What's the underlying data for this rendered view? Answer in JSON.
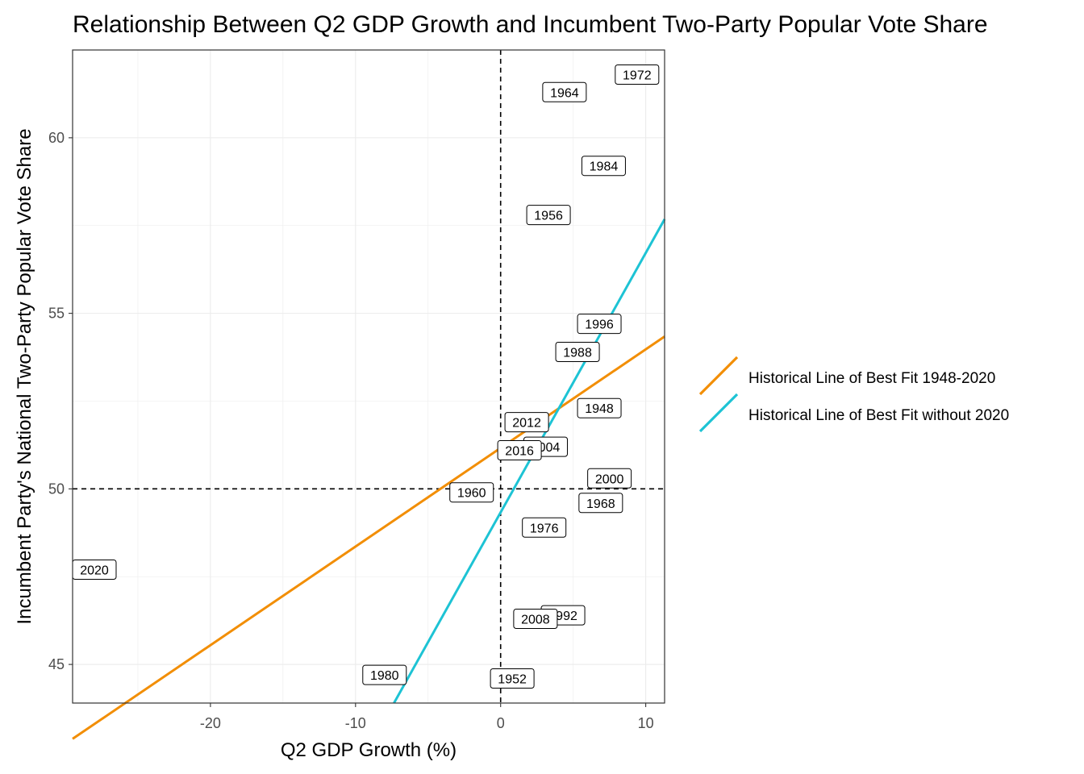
{
  "chart_data": {
    "type": "scatter",
    "title": "Relationship Between Q2 GDP Growth and Incumbent Two-Party Popular Vote Share",
    "xlabel": "Q2 GDP Growth (%)",
    "ylabel": "Incumbent Party's National Two-Party Popular Vote Share",
    "xlim": [
      -29.5,
      11.3
    ],
    "ylim": [
      43.9,
      62.5
    ],
    "x_ticks": [
      -20,
      -10,
      0,
      10
    ],
    "y_ticks": [
      45,
      50,
      55,
      60
    ],
    "grid": true,
    "reference_lines": {
      "x": 0,
      "y": 50,
      "style": "dashed"
    },
    "points": [
      {
        "label": "1948",
        "x": 6.8,
        "y": 52.3
      },
      {
        "label": "1952",
        "x": 0.8,
        "y": 44.6
      },
      {
        "label": "1956",
        "x": 3.3,
        "y": 57.8
      },
      {
        "label": "1960",
        "x": -2.0,
        "y": 49.9
      },
      {
        "label": "1964",
        "x": 4.4,
        "y": 61.3
      },
      {
        "label": "1968",
        "x": 6.9,
        "y": 49.6
      },
      {
        "label": "1972",
        "x": 9.4,
        "y": 61.8
      },
      {
        "label": "1976",
        "x": 3.0,
        "y": 48.9
      },
      {
        "label": "1980",
        "x": -8.0,
        "y": 44.7
      },
      {
        "label": "1984",
        "x": 7.1,
        "y": 59.2
      },
      {
        "label": "1988",
        "x": 5.3,
        "y": 53.9
      },
      {
        "label": "1992",
        "x": 4.3,
        "y": 46.4
      },
      {
        "label": "1996",
        "x": 6.8,
        "y": 54.7
      },
      {
        "label": "2000",
        "x": 7.5,
        "y": 50.3
      },
      {
        "label": "2004",
        "x": 3.1,
        "y": 51.2
      },
      {
        "label": "2008",
        "x": 2.4,
        "y": 46.3
      },
      {
        "label": "2012",
        "x": 1.8,
        "y": 51.9
      },
      {
        "label": "2016",
        "x": 1.3,
        "y": 51.1
      },
      {
        "label": "2020",
        "x": -28.0,
        "y": 47.7
      }
    ],
    "series": [
      {
        "name": "Historical Line of Best Fit 1948-2020",
        "type": "line",
        "color": "#f28e05",
        "x": [
          -29.5,
          11.3
        ],
        "y": [
          42.88,
          54.34
        ]
      },
      {
        "name": "Historical Line of Best Fit without 2020",
        "type": "line",
        "color": "#1dc3d4",
        "x": [
          -7.35,
          11.3
        ],
        "y": [
          43.9,
          57.68
        ]
      }
    ],
    "legend_position": "right"
  }
}
